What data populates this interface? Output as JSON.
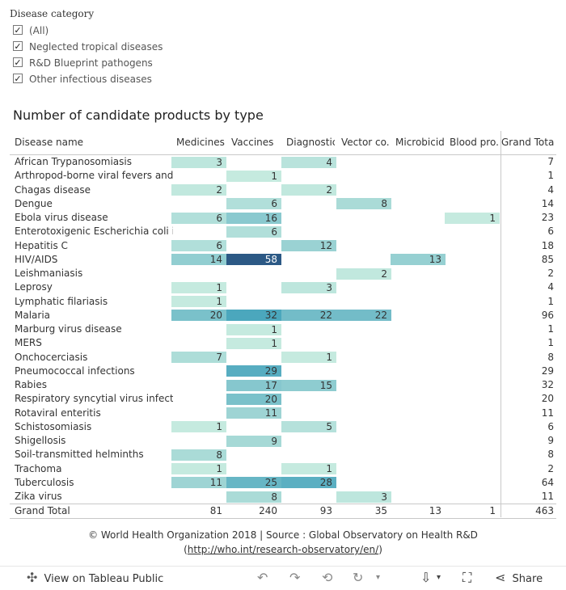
{
  "filter": {
    "title": "Disease category",
    "items": [
      {
        "label": "(All)",
        "checked": true
      },
      {
        "label": "Neglected tropical diseases",
        "checked": true
      },
      {
        "label": "R&D Blueprint pathogens",
        "checked": true
      },
      {
        "label": "Other infectious diseases",
        "checked": true
      }
    ]
  },
  "chart_data": {
    "type": "heatmap",
    "title": "Number of candidate products by type",
    "row_header": "Disease name",
    "columns": [
      "Medicines",
      "Vaccines",
      "Diagnostics",
      "Vector co..",
      "Microbicid..",
      "Blood pro.."
    ],
    "grand_total_label": "Grand Total",
    "rows": [
      {
        "name": "African Trypanosomiasis",
        "values": [
          3,
          null,
          4,
          null,
          null,
          null
        ],
        "total": 7
      },
      {
        "name": "Arthropod-borne viral fevers and..",
        "values": [
          null,
          1,
          null,
          null,
          null,
          null
        ],
        "total": 1
      },
      {
        "name": "Chagas disease",
        "values": [
          2,
          null,
          2,
          null,
          null,
          null
        ],
        "total": 4
      },
      {
        "name": "Dengue",
        "values": [
          null,
          6,
          null,
          8,
          null,
          null
        ],
        "total": 14
      },
      {
        "name": "Ebola virus disease",
        "values": [
          6,
          16,
          null,
          null,
          null,
          1
        ],
        "total": 23
      },
      {
        "name": "Enterotoxigenic Escherichia coli i..",
        "values": [
          null,
          6,
          null,
          null,
          null,
          null
        ],
        "total": 6
      },
      {
        "name": "Hepatitis C",
        "values": [
          6,
          null,
          12,
          null,
          null,
          null
        ],
        "total": 18
      },
      {
        "name": "HIV/AIDS",
        "values": [
          14,
          58,
          null,
          null,
          13,
          null
        ],
        "total": 85
      },
      {
        "name": "Leishmaniasis",
        "values": [
          null,
          null,
          null,
          2,
          null,
          null
        ],
        "total": 2
      },
      {
        "name": "Leprosy",
        "values": [
          1,
          null,
          3,
          null,
          null,
          null
        ],
        "total": 4
      },
      {
        "name": "Lymphatic filariasis",
        "values": [
          1,
          null,
          null,
          null,
          null,
          null
        ],
        "total": 1
      },
      {
        "name": "Malaria",
        "values": [
          20,
          32,
          22,
          22,
          null,
          null
        ],
        "total": 96
      },
      {
        "name": "Marburg virus disease",
        "values": [
          null,
          1,
          null,
          null,
          null,
          null
        ],
        "total": 1
      },
      {
        "name": "MERS",
        "values": [
          null,
          1,
          null,
          null,
          null,
          null
        ],
        "total": 1
      },
      {
        "name": "Onchocerciasis",
        "values": [
          7,
          null,
          1,
          null,
          null,
          null
        ],
        "total": 8
      },
      {
        "name": "Pneumococcal infections",
        "values": [
          null,
          29,
          null,
          null,
          null,
          null
        ],
        "total": 29
      },
      {
        "name": "Rabies",
        "values": [
          null,
          17,
          15,
          null,
          null,
          null
        ],
        "total": 32
      },
      {
        "name": "Respiratory syncytial virus infect..",
        "values": [
          null,
          20,
          null,
          null,
          null,
          null
        ],
        "total": 20
      },
      {
        "name": "Rotaviral enteritis",
        "values": [
          null,
          11,
          null,
          null,
          null,
          null
        ],
        "total": 11
      },
      {
        "name": "Schistosomiasis",
        "values": [
          1,
          null,
          5,
          null,
          null,
          null
        ],
        "total": 6
      },
      {
        "name": "Shigellosis",
        "values": [
          null,
          9,
          null,
          null,
          null,
          null
        ],
        "total": 9
      },
      {
        "name": "Soil-transmitted helminths",
        "values": [
          8,
          null,
          null,
          null,
          null,
          null
        ],
        "total": 8
      },
      {
        "name": "Trachoma",
        "values": [
          1,
          null,
          1,
          null,
          null,
          null
        ],
        "total": 2
      },
      {
        "name": "Tuberculosis",
        "values": [
          11,
          25,
          28,
          null,
          null,
          null
        ],
        "total": 64
      },
      {
        "name": "Zika virus",
        "values": [
          null,
          8,
          null,
          3,
          null,
          null
        ],
        "total": 11
      }
    ],
    "column_totals": [
      81,
      240,
      93,
      35,
      13,
      1
    ],
    "grand_total": 463,
    "color_scale": {
      "low": "#c5eadf",
      "mid": "#4aa6bd",
      "high": "#2c5985"
    }
  },
  "footer": {
    "source": "© World Health Organization 2018 | Source : Global Observatory on Health R&D",
    "link_open": "(",
    "link": "http://who.int/research-observatory/en/",
    "link_close": ")"
  },
  "toolbar": {
    "view_label": "View on Tableau Public",
    "share_label": "Share"
  }
}
